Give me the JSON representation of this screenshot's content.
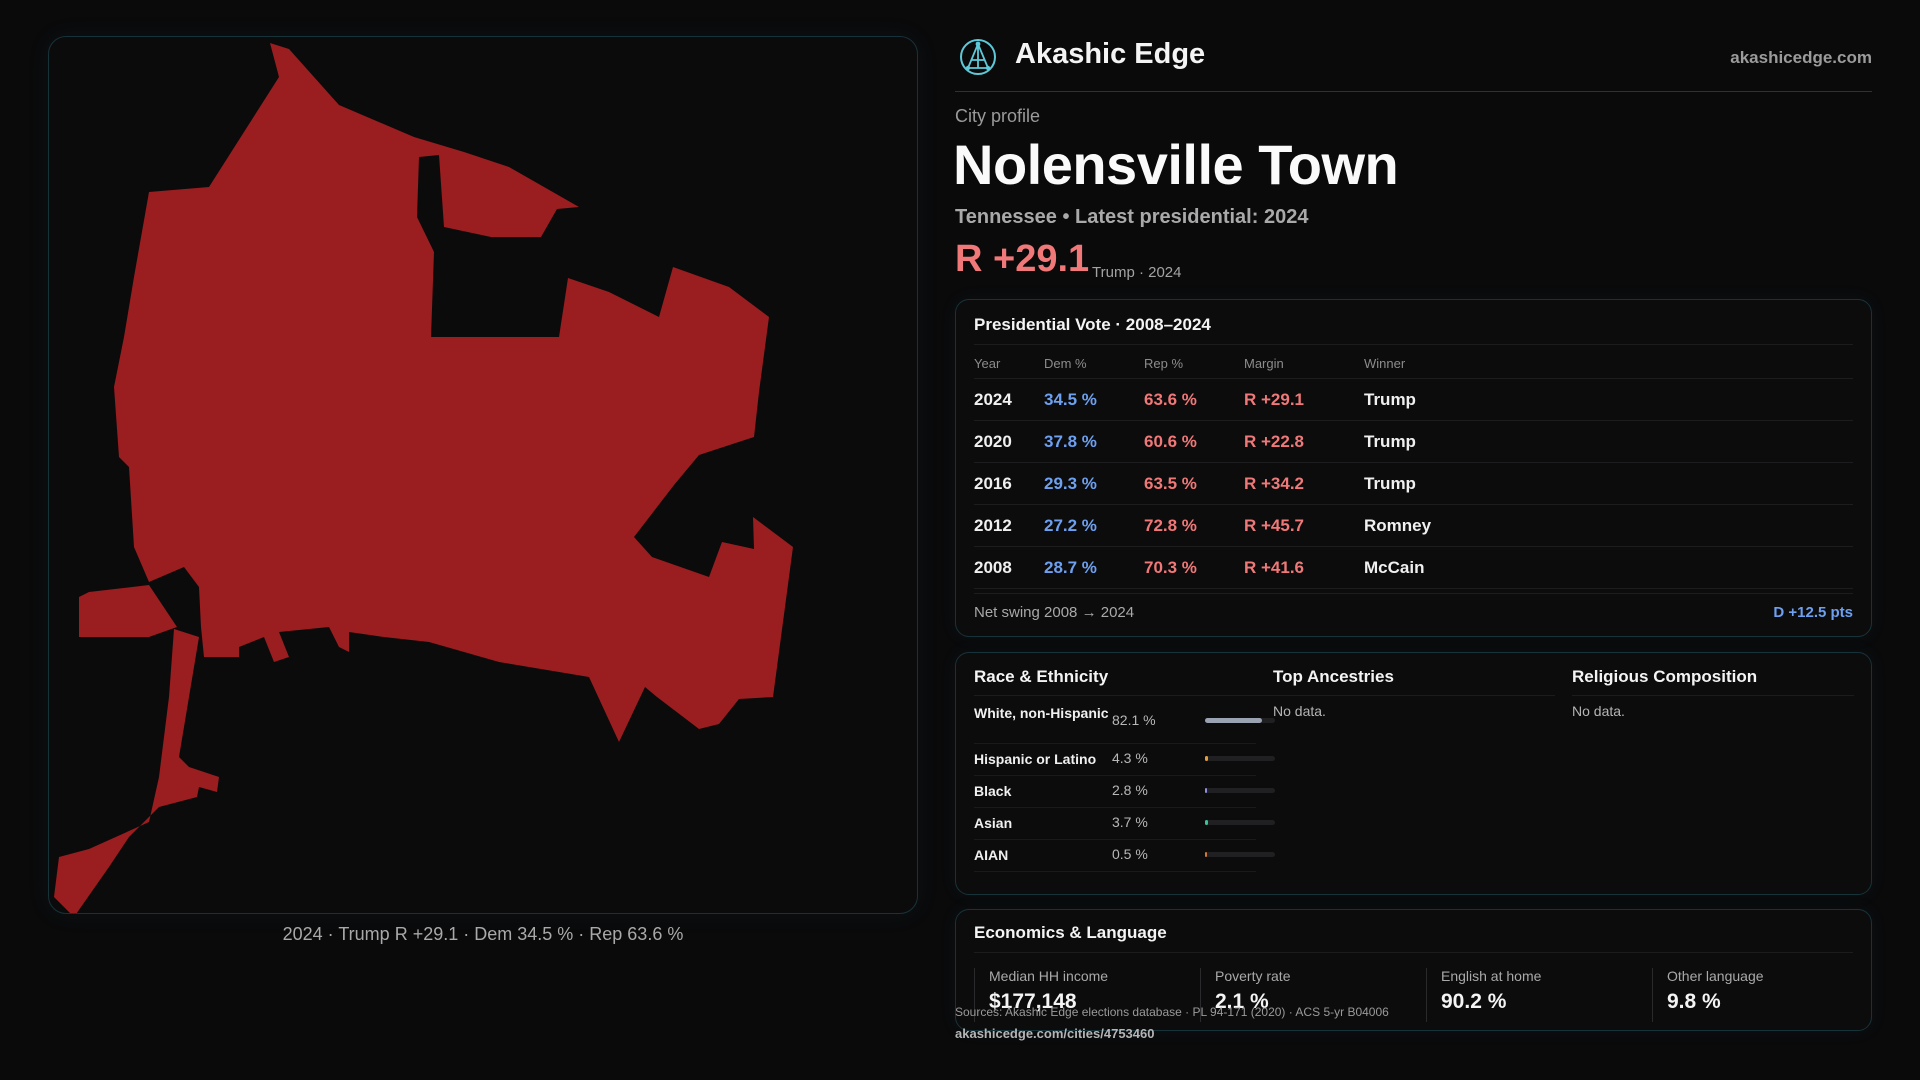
{
  "map": {
    "fill_color": "#9a1d1f",
    "caption": "2024 · Trump R +29.1 · Dem 34.5 % · Rep 63.6 %"
  },
  "header": {
    "logo_icon": "atom-network-icon",
    "brand": "Akashic Edge",
    "site": "akashicedge.com"
  },
  "profile": {
    "kicker": "City profile",
    "city": "Nolensville Town",
    "subline": "Tennessee • Latest presidential: 2024",
    "margin": "R +29.1",
    "margin_note": "Trump · 2024"
  },
  "votes": {
    "title": "Presidential Vote · 2008–2024",
    "headers": [
      "Year",
      "Dem %",
      "Rep %",
      "Margin",
      "Winner"
    ],
    "rows": [
      {
        "year": "2024",
        "dem": "34.5 %",
        "rep": "63.6 %",
        "margin": "R +29.1",
        "winner": "Trump"
      },
      {
        "year": "2020",
        "dem": "37.8 %",
        "rep": "60.6 %",
        "margin": "R +22.8",
        "winner": "Trump"
      },
      {
        "year": "2016",
        "dem": "29.3 %",
        "rep": "63.5 %",
        "margin": "R +34.2",
        "winner": "Trump"
      },
      {
        "year": "2012",
        "dem": "27.2 %",
        "rep": "72.8 %",
        "margin": "R +45.7",
        "winner": "Romney"
      },
      {
        "year": "2008",
        "dem": "28.7 %",
        "rep": "70.3 %",
        "margin": "R +41.6",
        "winner": "McCain"
      }
    ],
    "swing_label": "Net swing 2008 → 2024",
    "swing_value": "D +12.5 pts"
  },
  "race": {
    "title": "Race & Ethnicity",
    "items": [
      {
        "label": "White, non-Hispanic",
        "value": "82.1 %",
        "fraction": 0.821,
        "color": "#9aa3b2"
      },
      {
        "label": "Hispanic or Latino",
        "value": "4.3 %",
        "fraction": 0.043,
        "color": "#e0a040"
      },
      {
        "label": "Black",
        "value": "2.8 %",
        "fraction": 0.028,
        "color": "#8f8fe0"
      },
      {
        "label": "Asian",
        "value": "3.7 %",
        "fraction": 0.037,
        "color": "#3ec09a"
      },
      {
        "label": "AIAN",
        "value": "0.5 %",
        "fraction": 0.005,
        "color": "#d07a3a"
      }
    ]
  },
  "ancestries": {
    "title": "Top Ancestries",
    "empty": "No data."
  },
  "religion": {
    "title": "Religious Composition",
    "empty": "No data."
  },
  "economics": {
    "title": "Economics & Language",
    "stats": [
      {
        "label": "Median HH income",
        "value": "$177,148"
      },
      {
        "label": "Poverty rate",
        "value": "2.1 %"
      },
      {
        "label": "English at home",
        "value": "90.2 %"
      },
      {
        "label": "Other language",
        "value": "9.8 %"
      }
    ]
  },
  "footer": {
    "sources": "Sources: Akashic Edge elections database · PL 94-171 (2020) · ACS 5-yr B04006",
    "permalink": "akashicedge.com/cities/4753460"
  }
}
